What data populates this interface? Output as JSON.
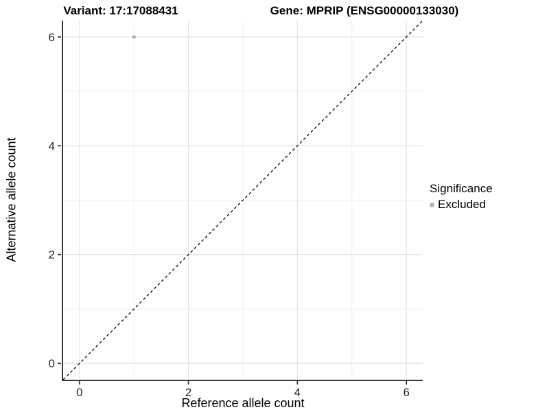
{
  "chart_data": {
    "type": "scatter",
    "title_left": "Variant: 17:17088431",
    "title_right": "Gene: MPRIP (ENSG00000133030)",
    "xlabel": "Reference allele count",
    "ylabel": "Alternative allele count",
    "xlim": [
      -0.3,
      6.3
    ],
    "ylim": [
      -0.3,
      6.3
    ],
    "xticks": [
      0,
      2,
      4,
      6
    ],
    "yticks": [
      0,
      2,
      4,
      6
    ],
    "xtick_labels": [
      "0",
      "2",
      "4",
      "6"
    ],
    "ytick_labels": [
      "0",
      "2",
      "4",
      "6"
    ],
    "xticks_minor": [
      1,
      3,
      5
    ],
    "yticks_minor": [
      1,
      3,
      5
    ],
    "grid": true,
    "points": [
      {
        "x": 1,
        "y": 6,
        "series": "Excluded"
      }
    ],
    "reference_line": {
      "slope": 1,
      "intercept": 0,
      "style": "dashed",
      "color": "#000000"
    },
    "legend": {
      "position": "right",
      "title": "Significance",
      "items": [
        {
          "label": "Excluded",
          "color": "#b3b3b3"
        }
      ]
    },
    "colors": {
      "point": "#b3b3b3",
      "grid_major": "#e3e3e3",
      "grid_minor": "#efefef",
      "axis": "#383838",
      "tick_text": "#262626",
      "background": "#ffffff"
    }
  }
}
